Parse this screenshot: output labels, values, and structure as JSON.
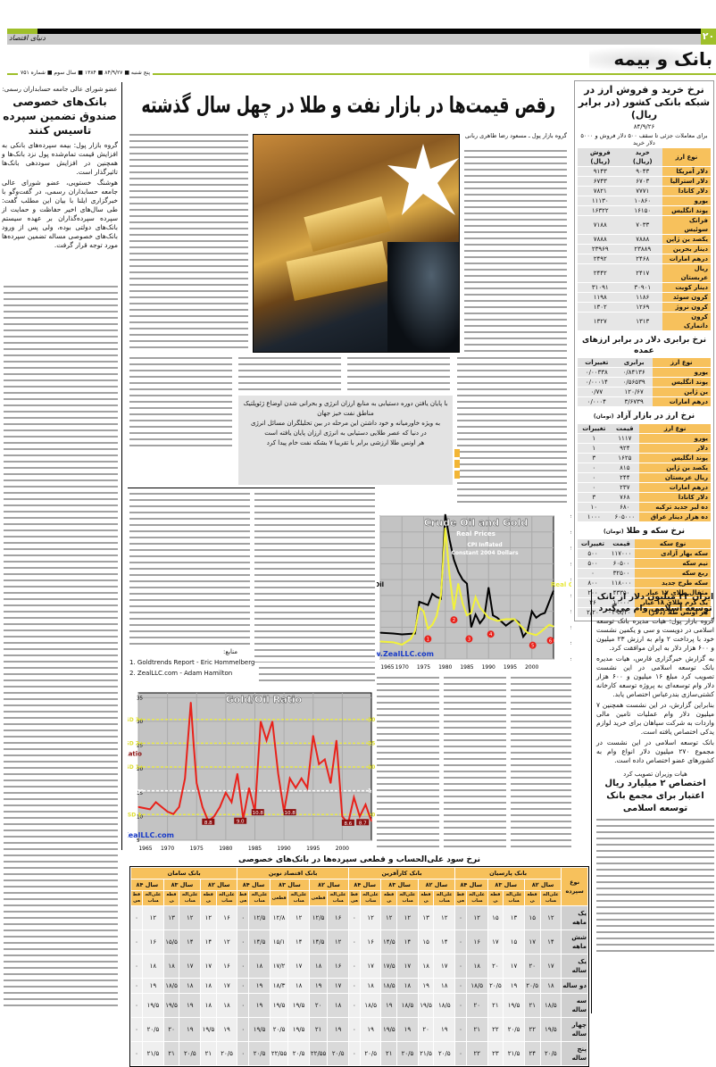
{
  "header": {
    "logo": "دنیای اقتصاد",
    "page_number": "۲۰",
    "section": "بانک و بیمه",
    "dateline": "پنج شنبه ■ ۸۴/۹/۲۷ ■ ۱۳۸۴ ■ سال سوم ■ شماره ۷۵۱",
    "accent": "#9fbf2a"
  },
  "main": {
    "headline": "رقص قیمت‌ها در بازار نفت و طلا در چهل سال گذشته",
    "byline": "گروه بازار پول ـ مسعود رضا طاهری ربانی",
    "quote": [
      "با پایان یافتن دوره دستیابی به منابع ارزان انرژی و بحرانی شدن اوضاع ژئوپلتیک مناطق نفت خیز جهان",
      "به ویژه خاورمیانه و خود داشتن این مرحله در بین تحلیلگران مسائل انرژی",
      "در دنیا که عصر طلایی دستیابی به انرژی ارزان پایان یافته است",
      "هر اونس طلا ارزشی برابر با تقریبا ۷ بشکه نفت خام پیدا کرد"
    ],
    "sources_label": "منابع:",
    "sources": [
      "1. Goldtrends Report - Eric Hommelberg",
      "2. ZealLLC.com - Adam Hamilton"
    ]
  },
  "left_article": {
    "kicker": "عضو شورای عالی جامعه حسابداران رسمی:",
    "headline": "بانک‌های خصوصی صندوق تضمین سپرده تاسیس کنند",
    "paragraphs": [
      "گروه بازار پول: بیمه سپرده‌های بانکی به افزایش قیمت تمام‌شده پول نزد بانک‌ها و همچنین در افزایش سوددهی بانک‌ها تاثیرگذار است.",
      "هوشنگ خستویی، عضو شورای عالی جامعه حسابداران رسمی، در گفت‌وگو با خبرگزاری ایلنا با بیان این مطلب گفت: طی سال‌های اخیر حفاظت و حمایت از سپرده سپرده‌گذاران بر عهده سیستم بانک‌های دولتی بوده، ولی پس از ورود بانک‌های خصوصی مساله تضمین سپرده‌ها مورد توجه قرار گرفت."
    ]
  },
  "sidebar": {
    "fx_bank": {
      "title": "نرخ خرید و فروش ارز در شبکه بانکی کشور (در برابر ریال)",
      "date": "۸۴/۹/۲۶",
      "note": "برای معاملات جزئی تا سقف ۵۰۰ دلار فروش و ۵۰۰۰ دلار خرید",
      "headers": [
        "نوع ارز",
        "خرید (ریال)",
        "فروش (ریال)"
      ],
      "rows": [
        [
          "دلار آمریکا",
          "۹۰۴۳",
          "۹۱۴۳"
        ],
        [
          "دلار استرالیا",
          "۶۷۰۳",
          "۶۷۴۳"
        ],
        [
          "دلار کانادا",
          "۷۷۷۱",
          "۷۸۲۱"
        ],
        [
          "یورو",
          "۱۰۸۶۰",
          "۱۱۱۳۰"
        ],
        [
          "پوند انگلیس",
          "۱۶۱۵۰",
          "۱۶۳۲۲"
        ],
        [
          "فرانک سوئیس",
          "۷۰۳۳",
          "۷۱۸۸"
        ],
        [
          "یکصد ین ژاپن",
          "۷۸۸۸",
          "۷۸۸۸"
        ],
        [
          "دینار بحرین",
          "۲۳۸۸۹",
          "۲۳۹۶۹"
        ],
        [
          "درهم امارات",
          "۲۴۶۸",
          "۲۴۹۲"
        ],
        [
          "ریال عربستان",
          "۲۴۱۷",
          "۲۴۴۲"
        ],
        [
          "دینار کویت",
          "۳۰۹۰۱",
          "۳۱۰۹۱"
        ],
        [
          "کرون سوئد",
          "۱۱۸۶",
          "۱۱۹۸"
        ],
        [
          "کرون نروژ",
          "۱۲۶۹",
          "۱۳۰۲"
        ],
        [
          "کرون دانمارک",
          "۱۳۱۳",
          "۱۳۲۷"
        ]
      ]
    },
    "parity": {
      "title": "نرخ برابری دلار در برابر ارزهای عمده",
      "headers": [
        "نوع ارز",
        "برابری",
        "تغییرات"
      ],
      "rows": [
        [
          "یورو",
          "۰/۸۴۱۳۶",
          "۰/۰۰۳۳۸"
        ],
        [
          "پوند انگلیس",
          "۰/۵۶۵۳۹",
          "۰/۰۰۰۱۴"
        ],
        [
          "ین ژاپن",
          "۱۲۰/۶۷",
          "۰/۷۷"
        ],
        [
          "درهم امارات",
          "۳/۶۷۳۹",
          "۰/۰۰۰۴"
        ]
      ]
    },
    "free_market": {
      "title": "نرخ ارز در بازار آزاد",
      "unit": "(تومان)",
      "headers": [
        "نوع ارز",
        "قیمت",
        "تغییرات"
      ],
      "rows": [
        [
          "یورو",
          "۱۱۱۷",
          "۱"
        ],
        [
          "دلار",
          "۹۲۴",
          "۱"
        ],
        [
          "پوند انگلیس",
          "۱۶۲۵",
          "۳"
        ],
        [
          "یکصد ین ژاپن",
          "۸۱۵",
          "۰"
        ],
        [
          "ریال عربستان",
          "۲۴۴",
          "۰"
        ],
        [
          "درهم امارات",
          "۲۳۷",
          "۰"
        ],
        [
          "دلار کانادا",
          "۷۶۸",
          "۳"
        ],
        [
          "ده لیر جدید ترکیه",
          "۶۸۰",
          "۱۰"
        ],
        [
          "ده هزار دینار عراق",
          "۶۰۵۰۰۰",
          "۱۰۰۰"
        ]
      ]
    },
    "coins": {
      "title": "نرخ سکه و طلا",
      "unit": "(تومان)",
      "headers": [
        "نوع سکه",
        "قیمت",
        "تغییرات"
      ],
      "rows": [
        [
          "سکه بهار آزادی",
          "۱۱۷۰۰۰",
          "۵۰۰"
        ],
        [
          "نیم سکه",
          "۶۰۵۰۰",
          "۵۰۰"
        ],
        [
          "ربع سکه",
          "۳۲۵۰۰",
          "۰"
        ],
        [
          "سکه طرح جدید",
          "۱۱۸۰۰۰",
          "۸۰۰"
        ],
        [
          "مثقال طلای ۱۷ عیار",
          "۴۳۳۵۰",
          "۲۰۰"
        ],
        [
          "یک گرم طلای ۱۸ عیار",
          "۱۰۰۰۰",
          "۴۶"
        ],
        [
          "هر اونس طلا (دلار)",
          "۴۹۸/۳۰",
          "۲/۲۰"
        ]
      ]
    },
    "article1": {
      "headline": "ایران ۲۳ میلیون دلار از بانک توسعه اسلامی وام می‌گیرد",
      "paragraphs": [
        "گروه بازار پول: هیات مدیره بانک توسعه اسلامی در دویست و سی و یکمین نشست خود با پرداخت ۲ وام به ارزش ۲۳ میلیون و ۶۰۰ هزار دلار به ایران موافقت کرد.",
        "به گزارش خبرگزاری فارس، هیات مدیره بانک توسعه اسلامی در این نشست تصویب کرد مبلغ ۱۶ میلیون و ۶۰۰ هزار دلار وام توسعه‌ای به پروژه توسعه کارخانه کشتی‌سازی بندرعباس اختصاص یابد.",
        "بنابراین گزارش، در این نشست همچنین ۷ میلیون دلار وام عملیات تامین مالی واردات به شرکت سپاهان برای خرید لوازم یدکی اختصاص یافته است.",
        "بانک توسعه اسلامی در این نشست در مجموع ۲۷۰ میلیون دلار انواع وام به کشورهای عضو اختصاص داده است."
      ]
    },
    "article2": {
      "kicker": "هیات وزیران تصویب کرد",
      "headline": "اختصاص ۲ میلیارد ریال اعتبار برای مجمع بانک توسعه اسلامی"
    }
  },
  "rates_table": {
    "title": "نرخ سود علی‌الحساب و قطعی سپرده‌ها در بانک‌های خصوصی",
    "corner": "نوع سپرده",
    "banks": [
      "بانک پارسیان",
      "بانک کارآفرین",
      "بانک اقتصاد نوین",
      "بانک سامان"
    ],
    "years": [
      "سال ۸۲",
      "سال ۸۳",
      "سال ۸۴"
    ],
    "sub": [
      "علی‌الحساب",
      "قطعی"
    ],
    "rows": [
      {
        "label": "یک ماهه",
        "values": [
          "۱۲",
          "۱۵",
          "۱۳",
          "۱۵",
          "۱۲",
          "۰",
          "۱۲",
          "۱۳",
          "۱۲",
          "۱۲",
          "۱۲",
          "۰",
          "۱۶",
          "۱۲/۵",
          "۱۲",
          "۱۲/۸",
          "۱۲/۵",
          "۰",
          "۱۶",
          "۱۲",
          "۱۲",
          "۱۳",
          "۱۲",
          "۰"
        ]
      },
      {
        "label": "شش ماهه",
        "values": [
          "۱۴",
          "۱۷",
          "۱۵",
          "۱۷",
          "۱۶",
          "۰",
          "۱۴",
          "۱۵",
          "۱۴",
          "۱۴/۵",
          "۱۶",
          "۰",
          "۱۲",
          "۱۴/۵",
          "۱۴",
          "۱۵/۱",
          "۱۴/۵",
          "۰",
          "۱۲",
          "۱۴",
          "۱۴",
          "۱۵/۵",
          "۱۶",
          "۰"
        ]
      },
      {
        "label": "یک ساله",
        "values": [
          "۱۷",
          "۲۰",
          "۱۷",
          "۲۰",
          "۱۸",
          "۰",
          "۱۷",
          "۱۸",
          "۱۷",
          "۱۷/۵",
          "۱۷",
          "۰",
          "۱۶",
          "۱۸",
          "۱۷",
          "۱۷/۲",
          "۱۸",
          "۰",
          "۱۶",
          "۱۷",
          "۱۷",
          "۱۸",
          "۱۸",
          "۰"
        ]
      },
      {
        "label": "دو ساله",
        "values": [
          "۱۸",
          "۲۰/۵",
          "۱۹",
          "۲۰/۵",
          "۱۸/۵",
          "۰",
          "۱۸",
          "۱۹",
          "۱۸",
          "۱۸/۵",
          "۱۸",
          "۰",
          "۱۷",
          "۱۹",
          "۱۸",
          "۱۸/۳",
          "۱۹",
          "۰",
          "۱۷",
          "۱۸",
          "۱۸",
          "۱۸/۵",
          "۱۹",
          "۰"
        ]
      },
      {
        "label": "سه ساله",
        "values": [
          "۱۸/۵",
          "۲۱",
          "۱۹/۵",
          "۲۱",
          "۲۰",
          "۰",
          "۱۸/۵",
          "۱۹/۵",
          "۱۸/۵",
          "۱۹",
          "۱۸/۵",
          "۰",
          "۱۸",
          "۲۰",
          "۱۹/۵",
          "۱۹/۵",
          "۱۹",
          "۰",
          "۱۸",
          "۱۸",
          "۱۹",
          "۱۹/۵",
          "۱۹/۵",
          "۰"
        ]
      },
      {
        "label": "چهار ساله",
        "values": [
          "۱۹/۵",
          "۲۲",
          "۲۰/۵",
          "۲۲",
          "۲۱",
          "۰",
          "۱۹",
          "۲۰",
          "۱۹",
          "۱۹/۵",
          "۱۹",
          "۰",
          "۱۹",
          "۲۱",
          "۱۹/۵",
          "۲۰/۵",
          "۱۹/۵",
          "۰",
          "۱۹",
          "۱۹/۵",
          "۱۹",
          "۲۰",
          "۲۰/۵",
          "۰"
        ]
      },
      {
        "label": "پنج ساله",
        "values": [
          "۲۰/۵",
          "۲۴",
          "۲۱/۵",
          "۲۳",
          "۲۲",
          "۰",
          "۲۰/۵",
          "۲۱/۵",
          "۲۰/۵",
          "۲۱",
          "۲۰/۵",
          "۰",
          "۲۰/۵",
          "۲۲/۵۵",
          "۲۰/۵",
          "۲۲/۵۵",
          "۲۰/۵",
          "۰",
          "۲۰/۵",
          "۲۱",
          "۲۰/۵",
          "۲۱",
          "۲۱/۵",
          "۰"
        ]
      }
    ]
  },
  "chart_data": [
    {
      "type": "line",
      "title": "Crude Oil and Gold",
      "subtitle": "Real Prices",
      "note": [
        "CPI Inflated",
        "Constant 2004 Dollars"
      ],
      "watermark": "www.ZealLLC.com",
      "xlim": [
        1965,
        2005
      ],
      "ylim": [
        0,
        1800
      ],
      "x_ticks": [
        1965,
        1970,
        1975,
        1980,
        1985,
        1990,
        1995,
        2000
      ],
      "y_ticks": [
        "$0",
        "$200",
        "$400",
        "$600",
        "$800",
        "$1,000",
        "$1,200",
        "$1,400",
        "$1,600",
        "$1,800"
      ],
      "grid": true,
      "series": [
        {
          "name": "Real Oil",
          "color": "#000000",
          "x": [
            1965,
            1968,
            1970,
            1973,
            1974,
            1975,
            1976,
            1977,
            1978,
            1979,
            1980,
            1981,
            1982,
            1983,
            1984,
            1985,
            1986,
            1987,
            1988,
            1989,
            1990,
            1991,
            1992,
            1994,
            1996,
            1997,
            1998,
            1999,
            2000,
            2001,
            2002,
            2003,
            2004,
            2005
          ],
          "y": [
            330,
            320,
            310,
            320,
            720,
            700,
            680,
            820,
            780,
            760,
            1820,
            1500,
            1250,
            1100,
            1000,
            950,
            400,
            560,
            450,
            520,
            900,
            550,
            520,
            420,
            500,
            460,
            280,
            350,
            600,
            520,
            560,
            580,
            720,
            860
          ]
        },
        {
          "name": "Real Gold",
          "color": "#f2f23a",
          "x": [
            1965,
            1968,
            1970,
            1972,
            1973,
            1974,
            1975,
            1976,
            1977,
            1978,
            1979,
            1980,
            1981,
            1982,
            1983,
            1984,
            1985,
            1986,
            1987,
            1988,
            1990,
            1992,
            1994,
            1996,
            1997,
            1999,
            2001,
            2002,
            2004,
            2005
          ],
          "y": [
            220,
            210,
            180,
            250,
            350,
            650,
            600,
            380,
            430,
            540,
            800,
            1650,
            1050,
            620,
            950,
            700,
            550,
            580,
            780,
            650,
            520,
            480,
            500,
            500,
            440,
            330,
            300,
            340,
            430,
            410
          ]
        }
      ],
      "markers": [
        "1",
        "2",
        "3",
        "4",
        "5",
        "6"
      ]
    },
    {
      "type": "line",
      "title": "Gold/Oil Ratio",
      "series_label": "Gold/Oil Ratio",
      "watermark": "www.ZealLLC.com",
      "xlim": [
        1965,
        2005
      ],
      "ylim": [
        5,
        36
      ],
      "x_ticks": [
        1965,
        1970,
        1975,
        1980,
        1985,
        1990,
        1995,
        2000
      ],
      "y_ticks": [
        5,
        10,
        15,
        20,
        25,
        30,
        35
      ],
      "grid": true,
      "reference_lines": [
        {
          "label": "+3 SD",
          "value": 30.4
        },
        {
          "label": "+2 SD",
          "value": 25.4
        },
        {
          "label": "+1 SD",
          "value": 20.4
        },
        {
          "label": "Average",
          "value": 15.4
        },
        {
          "label": "-1 SD",
          "value": 10.4
        }
      ],
      "series": [
        {
          "name": "Gold/Oil Ratio",
          "color": "#e8221b",
          "x": [
            1965,
            1967,
            1968,
            1969,
            1970,
            1971,
            1972,
            1973,
            1974,
            1974.5,
            1975,
            1976,
            1977,
            1978,
            1979,
            1980,
            1981,
            1982,
            1983,
            1984,
            1985,
            1986,
            1987,
            1988,
            1989,
            1990,
            1991,
            1992,
            1993,
            1994,
            1995,
            1996,
            1997,
            1998,
            1999,
            2000,
            2001,
            2002,
            2003,
            2004,
            2005
          ],
          "y": [
            12,
            11.5,
            13,
            12,
            11,
            10.5,
            12,
            18,
            34,
            25,
            17,
            12,
            9,
            10,
            12,
            15,
            13,
            19,
            9.5,
            16,
            11,
            30,
            26,
            30,
            19,
            11,
            18,
            16,
            18,
            16,
            27,
            21,
            22,
            17,
            26,
            10,
            8.5,
            14,
            10,
            12.5,
            9
          ]
        }
      ],
      "low_labels": [
        "8.8",
        "9.0",
        "10.8",
        "10.8",
        "8.6",
        "8.7"
      ]
    }
  ]
}
